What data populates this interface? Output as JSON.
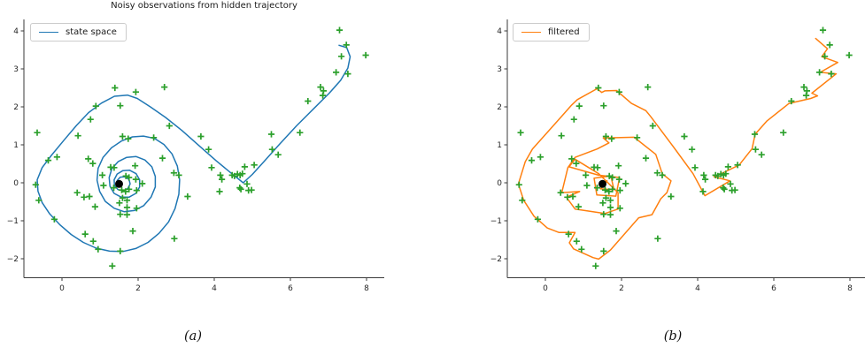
{
  "chart_data": {
    "type": "line",
    "description": "Two panels: hidden state-space trajectory (left) and filtered estimate (right), both with noisy observations",
    "axes": {
      "xlim": [
        -1.0,
        8.45
      ],
      "ylim": [
        -2.5,
        4.3
      ],
      "xticks": [
        [
          0,
          "0"
        ],
        [
          2,
          "2"
        ],
        [
          4,
          "4"
        ],
        [
          6,
          "6"
        ],
        [
          8,
          "8"
        ]
      ],
      "yticks": [
        [
          -2,
          "−2"
        ],
        [
          -1,
          "−1"
        ],
        [
          0,
          "0"
        ],
        [
          1,
          "1"
        ],
        [
          2,
          "2"
        ],
        [
          3,
          "3"
        ],
        [
          4,
          "4"
        ]
      ],
      "grid": false,
      "spine_color": "#3a3a3a",
      "tick_label_color": "#262626"
    },
    "panels": [
      {
        "id": "a",
        "title": "Noisy observations from hidden trajectory",
        "legend_label": "state space",
        "legend_position": "upper-left",
        "line_color": "#1f77b4",
        "series_key": "state_space",
        "caption": "(a)"
      },
      {
        "id": "b",
        "title": "",
        "legend_label": "filtered",
        "legend_position": "upper-left",
        "line_color": "#ff7f0e",
        "series_key": "filtered",
        "caption": "(b)"
      }
    ],
    "origin_marker": {
      "x": 1.5,
      "y": -0.03,
      "color": "#000000"
    },
    "observations_color": "#2ca02c",
    "observations": [
      [
        1.39,
        2.5
      ],
      [
        1.94,
        2.39
      ],
      [
        2.69,
        2.52
      ],
      [
        0.89,
        2.02
      ],
      [
        1.53,
        2.03
      ],
      [
        0.75,
        1.67
      ],
      [
        -0.65,
        1.32
      ],
      [
        0.42,
        1.24
      ],
      [
        1.59,
        1.22
      ],
      [
        1.74,
        1.16
      ],
      [
        2.41,
        1.19
      ],
      [
        2.82,
        1.5
      ],
      [
        3.65,
        1.22
      ],
      [
        7.29,
        4.02
      ],
      [
        7.47,
        3.63
      ],
      [
        7.34,
        3.33
      ],
      [
        7.98,
        3.36
      ],
      [
        7.2,
        2.91
      ],
      [
        7.51,
        2.87
      ],
      [
        6.79,
        2.52
      ],
      [
        6.87,
        2.42
      ],
      [
        6.85,
        2.3
      ],
      [
        6.46,
        2.15
      ],
      [
        6.25,
        1.32
      ],
      [
        5.5,
        1.28
      ],
      [
        -0.13,
        0.68
      ],
      [
        -0.36,
        0.59
      ],
      [
        0.69,
        0.63
      ],
      [
        0.81,
        0.51
      ],
      [
        -0.69,
        -0.05
      ],
      [
        -0.61,
        -0.46
      ],
      [
        -0.2,
        -0.96
      ],
      [
        0.4,
        -0.26
      ],
      [
        0.58,
        -0.38
      ],
      [
        0.72,
        -0.36
      ],
      [
        0.87,
        -0.63
      ],
      [
        0.61,
        -1.35
      ],
      [
        0.82,
        -1.54
      ],
      [
        0.95,
        -1.75
      ],
      [
        1.53,
        -1.8
      ],
      [
        1.32,
        -2.19
      ],
      [
        1.06,
        0.2
      ],
      [
        1.09,
        -0.07
      ],
      [
        1.28,
        0.41
      ],
      [
        1.37,
        0.4
      ],
      [
        1.92,
        0.45
      ],
      [
        1.68,
        0.18
      ],
      [
        1.76,
        0.14
      ],
      [
        1.94,
        0.09
      ],
      [
        2.11,
        -0.02
      ],
      [
        1.36,
        -0.13
      ],
      [
        1.57,
        -0.19
      ],
      [
        1.67,
        -0.23
      ],
      [
        1.76,
        -0.17
      ],
      [
        1.96,
        -0.2
      ],
      [
        1.59,
        -0.4
      ],
      [
        1.71,
        -0.46
      ],
      [
        1.51,
        -0.53
      ],
      [
        1.71,
        -0.65
      ],
      [
        1.96,
        -0.67
      ],
      [
        1.53,
        -0.83
      ],
      [
        1.71,
        -0.84
      ],
      [
        1.86,
        -1.27
      ],
      [
        2.94,
        0.26
      ],
      [
        3.07,
        0.2
      ],
      [
        3.3,
        -0.36
      ],
      [
        2.95,
        -1.47
      ],
      [
        2.64,
        0.65
      ],
      [
        3.85,
        0.88
      ],
      [
        3.93,
        0.4
      ],
      [
        4.16,
        0.2
      ],
      [
        4.2,
        0.09
      ],
      [
        4.47,
        0.2
      ],
      [
        4.53,
        0.18
      ],
      [
        4.61,
        0.23
      ],
      [
        4.68,
        0.2
      ],
      [
        4.74,
        0.24
      ],
      [
        4.8,
        0.42
      ],
      [
        5.05,
        0.47
      ],
      [
        4.86,
        -0.03
      ],
      [
        4.67,
        -0.13
      ],
      [
        4.7,
        -0.17
      ],
      [
        4.9,
        -0.2
      ],
      [
        4.98,
        -0.19
      ],
      [
        4.14,
        -0.23
      ],
      [
        5.52,
        0.88
      ],
      [
        5.68,
        0.74
      ]
    ],
    "series": {
      "state_space": [
        [
          7.28,
          3.62
        ],
        [
          7.48,
          3.56
        ],
        [
          7.57,
          3.32
        ],
        [
          7.51,
          3.02
        ],
        [
          7.32,
          2.7
        ],
        [
          7.02,
          2.36
        ],
        [
          6.62,
          1.96
        ],
        [
          6.16,
          1.5
        ],
        [
          5.7,
          1.0
        ],
        [
          5.3,
          0.55
        ],
        [
          5.0,
          0.22
        ],
        [
          4.76,
          0.0
        ],
        [
          4.45,
          0.25
        ],
        [
          4.05,
          0.58
        ],
        [
          3.6,
          0.98
        ],
        [
          3.15,
          1.38
        ],
        [
          2.72,
          1.72
        ],
        [
          2.32,
          2.0
        ],
        [
          1.98,
          2.22
        ],
        [
          1.72,
          2.31
        ],
        [
          1.38,
          2.28
        ],
        [
          1.04,
          2.1
        ],
        [
          0.7,
          1.85
        ],
        [
          0.38,
          1.51
        ],
        [
          0.05,
          1.12
        ],
        [
          -0.28,
          0.72
        ],
        [
          -0.52,
          0.4
        ],
        [
          -0.65,
          0.08
        ],
        [
          -0.63,
          -0.22
        ],
        [
          -0.52,
          -0.52
        ],
        [
          -0.32,
          -0.82
        ],
        [
          -0.06,
          -1.1
        ],
        [
          0.24,
          -1.36
        ],
        [
          0.56,
          -1.57
        ],
        [
          0.9,
          -1.72
        ],
        [
          1.25,
          -1.8
        ],
        [
          1.6,
          -1.81
        ],
        [
          1.94,
          -1.73
        ],
        [
          2.26,
          -1.57
        ],
        [
          2.55,
          -1.33
        ],
        [
          2.8,
          -1.03
        ],
        [
          2.97,
          -0.68
        ],
        [
          3.07,
          -0.3
        ],
        [
          3.09,
          0.08
        ],
        [
          3.03,
          0.44
        ],
        [
          2.89,
          0.76
        ],
        [
          2.68,
          1.01
        ],
        [
          2.43,
          1.17
        ],
        [
          2.14,
          1.23
        ],
        [
          1.85,
          1.21
        ],
        [
          1.56,
          1.1
        ],
        [
          1.3,
          0.92
        ],
        [
          1.08,
          0.67
        ],
        [
          0.95,
          0.38
        ],
        [
          0.92,
          0.07
        ],
        [
          0.99,
          -0.23
        ],
        [
          1.14,
          -0.49
        ],
        [
          1.37,
          -0.67
        ],
        [
          1.63,
          -0.76
        ],
        [
          1.9,
          -0.73
        ],
        [
          2.15,
          -0.6
        ],
        [
          2.34,
          -0.38
        ],
        [
          2.45,
          -0.11
        ],
        [
          2.45,
          0.17
        ],
        [
          2.36,
          0.42
        ],
        [
          2.18,
          0.6
        ],
        [
          1.95,
          0.69
        ],
        [
          1.7,
          0.67
        ],
        [
          1.48,
          0.56
        ],
        [
          1.31,
          0.37
        ],
        [
          1.24,
          0.14
        ],
        [
          1.26,
          -0.09
        ],
        [
          1.37,
          -0.28
        ],
        [
          1.56,
          -0.38
        ],
        [
          1.76,
          -0.38
        ],
        [
          1.94,
          -0.28
        ],
        [
          2.04,
          -0.11
        ],
        [
          2.04,
          0.08
        ],
        [
          1.95,
          0.24
        ],
        [
          1.78,
          0.33
        ],
        [
          1.6,
          0.32
        ],
        [
          1.45,
          0.23
        ],
        [
          1.37,
          0.08
        ],
        [
          1.38,
          -0.07
        ],
        [
          1.47,
          -0.18
        ],
        [
          1.61,
          -0.21
        ],
        [
          1.73,
          -0.15
        ],
        [
          1.79,
          -0.03
        ],
        [
          1.76,
          0.09
        ],
        [
          1.65,
          0.16
        ],
        [
          1.53,
          0.15
        ],
        [
          1.45,
          0.06
        ],
        [
          1.47,
          -0.04
        ],
        [
          1.53,
          -0.03
        ]
      ],
      "filtered": [
        [
          7.1,
          3.8
        ],
        [
          7.41,
          3.53
        ],
        [
          7.26,
          3.32
        ],
        [
          7.68,
          3.17
        ],
        [
          7.22,
          2.91
        ],
        [
          7.64,
          2.87
        ],
        [
          7.0,
          2.36
        ],
        [
          7.15,
          2.29
        ],
        [
          6.97,
          2.22
        ],
        [
          6.4,
          2.09
        ],
        [
          5.82,
          1.63
        ],
        [
          5.51,
          1.28
        ],
        [
          5.43,
          0.9
        ],
        [
          5.09,
          0.47
        ],
        [
          4.7,
          0.28
        ],
        [
          4.43,
          0.16
        ],
        [
          4.85,
          0.05
        ],
        [
          4.19,
          -0.34
        ],
        [
          3.88,
          0.24
        ],
        [
          3.34,
          0.98
        ],
        [
          2.77,
          1.74
        ],
        [
          2.64,
          1.9
        ],
        [
          2.26,
          2.09
        ],
        [
          1.87,
          2.43
        ],
        [
          1.56,
          2.42
        ],
        [
          1.48,
          2.38
        ],
        [
          1.36,
          2.48
        ],
        [
          0.84,
          2.19
        ],
        [
          0.69,
          2.05
        ],
        [
          0.32,
          1.63
        ],
        [
          -0.34,
          0.89
        ],
        [
          -0.53,
          0.55
        ],
        [
          -0.71,
          -0.03
        ],
        [
          -0.57,
          -0.46
        ],
        [
          -0.3,
          -0.88
        ],
        [
          0.05,
          -1.19
        ],
        [
          0.36,
          -1.31
        ],
        [
          0.78,
          -1.31
        ],
        [
          0.63,
          -1.58
        ],
        [
          0.74,
          -1.74
        ],
        [
          1.25,
          -1.97
        ],
        [
          1.4,
          -2.01
        ],
        [
          1.71,
          -1.77
        ],
        [
          2.45,
          -0.92
        ],
        [
          2.8,
          -0.84
        ],
        [
          3.03,
          -0.42
        ],
        [
          3.19,
          -0.26
        ],
        [
          3.3,
          0.05
        ],
        [
          3.07,
          0.24
        ],
        [
          2.9,
          0.75
        ],
        [
          2.33,
          1.2
        ],
        [
          1.52,
          1.18
        ],
        [
          1.67,
          1.05
        ],
        [
          1.36,
          0.89
        ],
        [
          0.78,
          0.67
        ],
        [
          0.59,
          0.4
        ],
        [
          0.43,
          -0.26
        ],
        [
          0.9,
          -0.23
        ],
        [
          0.55,
          -0.38
        ],
        [
          0.78,
          -0.69
        ],
        [
          1.56,
          -0.81
        ],
        [
          1.91,
          -0.69
        ],
        [
          1.91,
          -0.26
        ],
        [
          1.4,
          0.24
        ],
        [
          0.78,
          0.62
        ],
        [
          0.62,
          0.42
        ],
        [
          1.4,
          0.2
        ],
        [
          1.95,
          0.14
        ],
        [
          1.85,
          -0.35
        ],
        [
          1.35,
          -0.32
        ],
        [
          1.28,
          0.12
        ],
        [
          1.72,
          0.18
        ],
        [
          1.8,
          -0.18
        ],
        [
          1.45,
          -0.16
        ],
        [
          1.62,
          0.05
        ],
        [
          1.5,
          -0.03
        ]
      ]
    }
  }
}
